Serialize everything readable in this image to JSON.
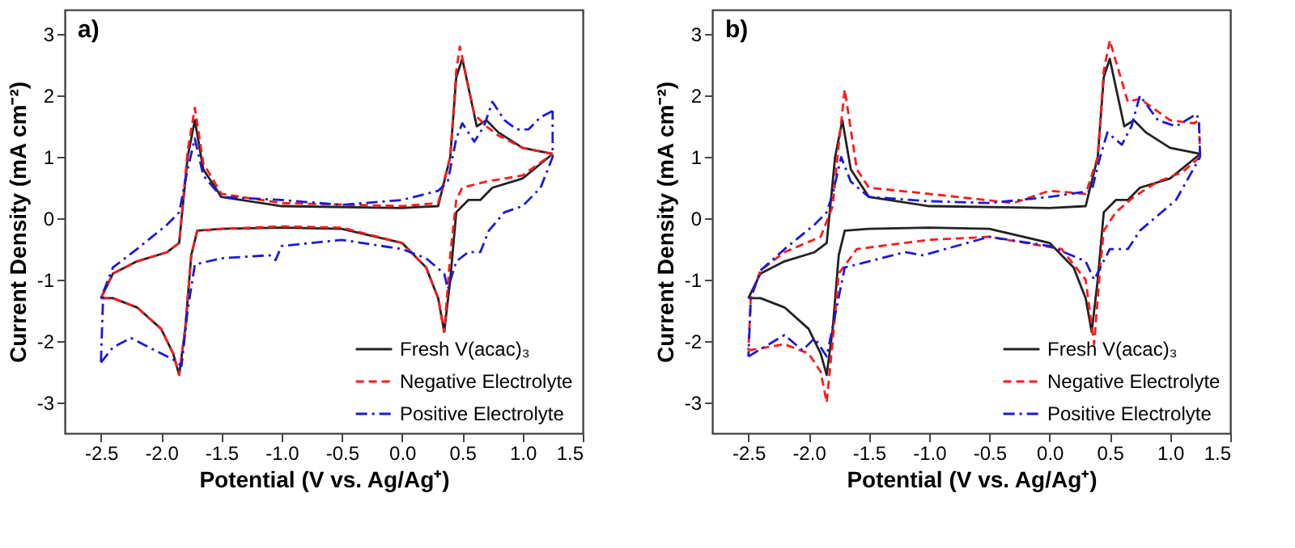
{
  "chart_data": [
    {
      "type": "line",
      "annotations": [
        "a)"
      ],
      "xlabel": "Potential (V vs. Ag/Ag⁺)",
      "ylabel": "Current Density (mA cm⁻²)",
      "xlim": [
        -2.8,
        1.5
      ],
      "ylim": [
        -3.5,
        3.4
      ],
      "xticks": [
        {
          "value": -2.5,
          "label": "-2.5"
        },
        {
          "value": -2,
          "label": "-2.0"
        },
        {
          "value": -1.5,
          "label": "-1.5"
        },
        {
          "value": -1,
          "label": "-1.0"
        },
        {
          "value": -0.5,
          "label": "-0.5"
        },
        {
          "value": 0,
          "label": "0.0"
        },
        {
          "value": 0.5,
          "label": "0.5"
        },
        {
          "value": 1,
          "label": "1.0"
        },
        {
          "value": 1.5,
          "label": "1.5"
        }
      ],
      "yticks": [
        -3,
        -2,
        -1,
        0,
        1,
        2,
        3
      ],
      "grid": false,
      "legend": "bottom right",
      "marker": "none",
      "series": [
        {
          "name": "Fresh V(acac)₃",
          "color": "#222222",
          "line_style": "solid",
          "x": [
            -2.5,
            -2.4,
            -2.2,
            -2.0,
            -1.9,
            -1.85,
            -1.8,
            -1.75,
            -1.7,
            -1.5,
            -1.0,
            -0.5,
            0,
            0.2,
            0.3,
            0.35,
            0.4,
            0.45,
            0.55,
            0.65,
            0.75,
            1.0,
            1.25
          ],
          "values": [
            -1.3,
            -1.3,
            -1.45,
            -1.8,
            -2.2,
            -2.55,
            -1.8,
            -0.6,
            -0.2,
            -0.17,
            -0.15,
            -0.17,
            -0.4,
            -0.8,
            -1.3,
            -1.85,
            -1.0,
            0.1,
            0.3,
            0.3,
            0.5,
            0.65,
            1.05
          ]
        },
        {
          "name": "Negative Electrolyte",
          "color": "#ff1a1a",
          "line_style": "dashed",
          "x": [
            -2.5,
            -2.4,
            -2.2,
            -2.0,
            -1.9,
            -1.85,
            -1.8,
            -1.75,
            -1.7,
            -1.5,
            -1.0,
            -0.5,
            0,
            0.2,
            0.3,
            0.35,
            0.4,
            0.45,
            0.5,
            0.7,
            1.0,
            1.25
          ],
          "values": [
            -1.3,
            -1.3,
            -1.45,
            -1.8,
            -2.2,
            -2.55,
            -1.8,
            -0.6,
            -0.2,
            -0.17,
            -0.13,
            -0.15,
            -0.4,
            -0.8,
            -1.3,
            -1.85,
            -0.6,
            0.3,
            0.5,
            0.6,
            0.7,
            1.05
          ]
        },
        {
          "name": "Positive Electrolyte",
          "color": "#1a1ad9",
          "line_style": "dashdot",
          "x": [
            -2.5,
            -2.4,
            -2.25,
            -2.0,
            -1.9,
            -1.83,
            -1.78,
            -1.72,
            -1.5,
            -1.1,
            -1.05,
            -1.0,
            -0.5,
            0,
            0.2,
            0.35,
            0.38,
            0.45,
            0.55,
            0.65,
            0.72,
            0.85,
            1.0,
            1.15,
            1.25,
            1.25
          ],
          "values": [
            -2.35,
            -2.1,
            -1.95,
            -2.2,
            -2.3,
            -2.4,
            -1.5,
            -0.75,
            -0.65,
            -0.6,
            -0.68,
            -0.45,
            -0.35,
            -0.5,
            -0.65,
            -0.9,
            -1.15,
            -0.7,
            -0.55,
            -0.55,
            -0.2,
            0.1,
            0.2,
            0.5,
            1.0,
            1.75
          ]
        },
        {
          "color": "#222222",
          "line_style": "solid",
          "x": [
            1.25,
            1.0,
            0.8,
            0.7,
            0.62,
            0.5,
            0.45,
            0.4,
            0.3,
            0,
            -1,
            -1.5,
            -1.65,
            -1.72,
            -1.78,
            -1.85,
            -1.95,
            -2.2,
            -2.4,
            -2.5
          ],
          "values": [
            1.05,
            1.15,
            1.4,
            1.6,
            1.5,
            2.6,
            2.3,
            1.0,
            0.2,
            0.17,
            0.2,
            0.35,
            0.8,
            1.6,
            1.0,
            -0.4,
            -0.55,
            -0.7,
            -0.9,
            -1.3
          ]
        },
        {
          "color": "#ff1a1a",
          "line_style": "dashed",
          "x": [
            1.25,
            1.0,
            0.8,
            0.7,
            0.6,
            0.48,
            0.45,
            0.4,
            0.3,
            0,
            -1,
            -1.5,
            -1.65,
            -1.72,
            -1.78,
            -1.85,
            -1.95,
            -2.2,
            -2.4,
            -2.5
          ],
          "values": [
            1.05,
            1.15,
            1.35,
            1.5,
            1.7,
            2.8,
            2.4,
            1.0,
            0.25,
            0.2,
            0.25,
            0.4,
            0.9,
            1.8,
            1.1,
            -0.4,
            -0.55,
            -0.7,
            -0.9,
            -1.3
          ]
        },
        {
          "color": "#1a1ad9",
          "line_style": "dashdot",
          "x": [
            1.25,
            1.15,
            1.05,
            0.95,
            0.85,
            0.75,
            0.68,
            0.6,
            0.5,
            0.45,
            0.38,
            0.3,
            0,
            -0.5,
            -1,
            -1.5,
            -1.65,
            -1.72,
            -1.78,
            -1.85,
            -1.95,
            -2.2,
            -2.4,
            -2.48,
            -2.5
          ],
          "values": [
            1.75,
            1.65,
            1.45,
            1.45,
            1.6,
            1.9,
            1.5,
            1.25,
            1.55,
            1.3,
            0.6,
            0.45,
            0.3,
            0.22,
            0.3,
            0.35,
            0.7,
            1.3,
            0.8,
            0.1,
            -0.1,
            -0.5,
            -0.8,
            -1.2,
            -2.35
          ]
        }
      ]
    },
    {
      "type": "line",
      "annotations": [
        "b)"
      ],
      "xlabel": "Potential (V vs. Ag/Ag⁺)",
      "ylabel": "Current Density (mA cm⁻²)",
      "xlim": [
        -2.8,
        1.5
      ],
      "ylim": [
        -3.5,
        3.4
      ],
      "xticks": [
        {
          "value": -2.5,
          "label": "-2.5"
        },
        {
          "value": -2,
          "label": "-2.0"
        },
        {
          "value": -1.5,
          "label": "-1.5"
        },
        {
          "value": -1,
          "label": "-1.0"
        },
        {
          "value": -0.5,
          "label": "-0.5"
        },
        {
          "value": 0,
          "label": "0.0"
        },
        {
          "value": 0.5,
          "label": "0.5"
        },
        {
          "value": 1,
          "label": "1.0"
        },
        {
          "value": 1.5,
          "label": "1.5"
        }
      ],
      "yticks": [
        -3,
        -2,
        -1,
        0,
        1,
        2,
        3
      ],
      "grid": false,
      "legend": "bottom right",
      "marker": "none",
      "series": [
        {
          "name": "Fresh V(acac)₃",
          "color": "#222222",
          "line_style": "solid",
          "x": [
            -2.5,
            -2.4,
            -2.2,
            -2.0,
            -1.9,
            -1.85,
            -1.8,
            -1.75,
            -1.7,
            -1.5,
            -1.0,
            -0.5,
            0,
            0.2,
            0.3,
            0.35,
            0.4,
            0.45,
            0.55,
            0.65,
            0.75,
            1.0,
            1.25
          ],
          "values": [
            -1.3,
            -1.3,
            -1.45,
            -1.8,
            -2.2,
            -2.55,
            -1.8,
            -0.6,
            -0.2,
            -0.17,
            -0.15,
            -0.17,
            -0.4,
            -0.8,
            -1.3,
            -1.85,
            -1.0,
            0.1,
            0.3,
            0.3,
            0.5,
            0.65,
            1.05
          ]
        },
        {
          "name": "Negative Electrolyte",
          "color": "#ff1a1a",
          "line_style": "dashed",
          "x": [
            -2.5,
            -2.2,
            -2.0,
            -1.9,
            -1.85,
            -1.8,
            -1.75,
            -1.6,
            -1.0,
            -0.5,
            0.1,
            0.3,
            0.37,
            0.42,
            0.45,
            0.55,
            0.7,
            0.9,
            1.1,
            1.25
          ],
          "values": [
            -2.15,
            -2.05,
            -2.2,
            -2.5,
            -3.0,
            -2.0,
            -0.9,
            -0.5,
            -0.35,
            -0.3,
            -0.5,
            -1.0,
            -2.05,
            -0.8,
            -0.2,
            0.1,
            0.35,
            0.6,
            0.75,
            1.0
          ]
        },
        {
          "name": "Positive Electrolyte",
          "color": "#1a1ad9",
          "line_style": "dashdot",
          "x": [
            -2.5,
            -2.2,
            -2.05,
            -1.95,
            -1.85,
            -1.7,
            -1.2,
            -1.05,
            -0.5,
            0,
            0.3,
            0.37,
            0.5,
            0.65,
            0.75,
            1.05,
            1.25
          ],
          "values": [
            -2.25,
            -1.9,
            -2.15,
            -1.95,
            -2.25,
            -0.8,
            -0.55,
            -0.6,
            -0.3,
            -0.45,
            -0.7,
            -1.0,
            -0.5,
            -0.5,
            -0.2,
            0.3,
            1.0
          ]
        },
        {
          "color": "#222222",
          "line_style": "solid",
          "x": [
            1.25,
            1.0,
            0.8,
            0.7,
            0.62,
            0.5,
            0.45,
            0.4,
            0.3,
            0,
            -1,
            -1.5,
            -1.65,
            -1.72,
            -1.78,
            -1.85,
            -1.95,
            -2.2,
            -2.4,
            -2.5
          ],
          "values": [
            1.05,
            1.15,
            1.4,
            1.6,
            1.5,
            2.6,
            2.3,
            1.0,
            0.2,
            0.17,
            0.2,
            0.35,
            0.8,
            1.6,
            1.0,
            -0.4,
            -0.55,
            -0.7,
            -0.9,
            -1.3
          ]
        },
        {
          "color": "#ff1a1a",
          "line_style": "dashed",
          "x": [
            1.25,
            1.24,
            1.2,
            1.0,
            0.75,
            0.65,
            0.5,
            0.45,
            0.4,
            0.3,
            0,
            -0.3,
            -1,
            -1.5,
            -1.6,
            -1.7,
            -1.75,
            -1.8,
            -1.9,
            -2.2,
            -2.4,
            -2.48,
            -2.5
          ],
          "values": [
            1.0,
            1.6,
            1.55,
            1.6,
            1.95,
            1.9,
            2.9,
            2.4,
            1.0,
            0.4,
            0.45,
            0.25,
            0.4,
            0.5,
            0.8,
            2.1,
            1.2,
            0.2,
            -0.3,
            -0.55,
            -0.85,
            -1.3,
            -2.15
          ]
        },
        {
          "color": "#1a1ad9",
          "line_style": "dashdot",
          "x": [
            1.25,
            1.24,
            1.22,
            1.05,
            0.9,
            0.75,
            0.68,
            0.6,
            0.48,
            0.42,
            0.35,
            0,
            -0.5,
            -1,
            -1.5,
            -1.65,
            -1.73,
            -1.8,
            -1.85,
            -1.95,
            -2.2,
            -2.4,
            -2.48,
            -2.5
          ],
          "values": [
            1.0,
            1.6,
            1.7,
            1.5,
            1.6,
            2.0,
            1.5,
            1.2,
            1.4,
            1.0,
            0.45,
            0.35,
            0.25,
            0.28,
            0.35,
            0.6,
            1.0,
            0.4,
            0.1,
            -0.1,
            -0.5,
            -0.85,
            -1.3,
            -2.25
          ]
        }
      ]
    }
  ]
}
